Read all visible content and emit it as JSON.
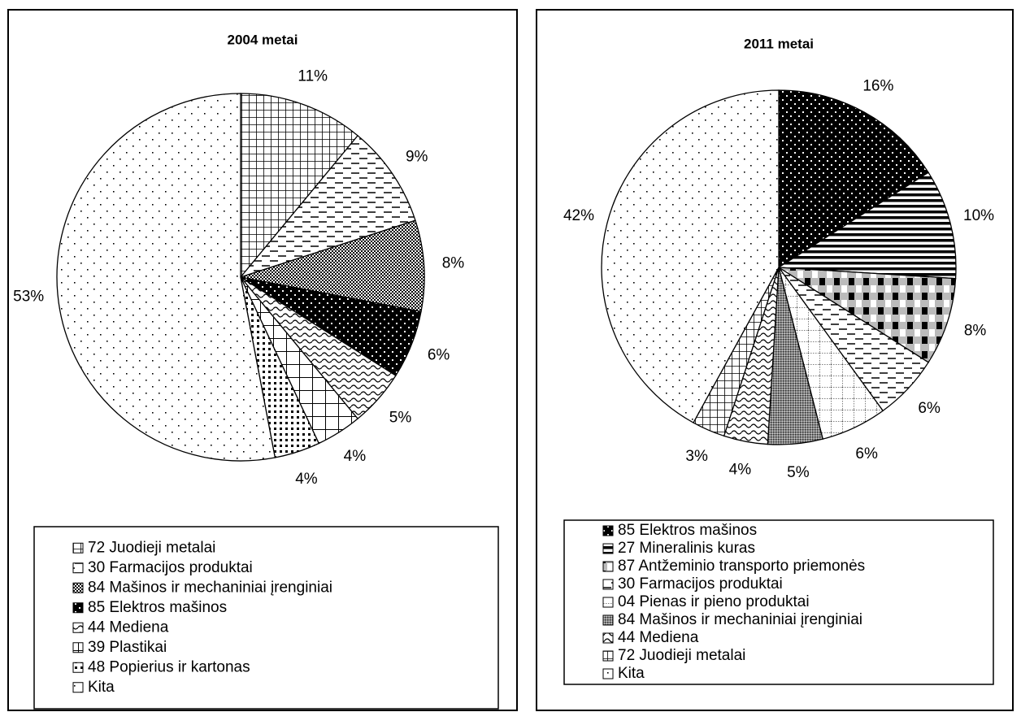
{
  "chart_data": [
    {
      "type": "pie",
      "title": "2004 metai",
      "categories": [
        "72 Juodieji metalai",
        "30 Farmacijos produktai",
        "84 Mašinos ir mechaniniai įrenginiai",
        "85 Elektros mašinos",
        "44 Mediena",
        "39 Plastikai",
        "48 Popierius ir kartonas",
        "Kita"
      ],
      "values": [
        11,
        9,
        8,
        6,
        5,
        4,
        4,
        53
      ],
      "value_labels": [
        "11%",
        "9%",
        "8%",
        "6%",
        "5%",
        "4%",
        "4%",
        "53%"
      ],
      "patterns": [
        "grid",
        "dash",
        "checker",
        "dotsblack",
        "wave",
        "crossbig",
        "blocks",
        "sparse"
      ]
    },
    {
      "type": "pie",
      "title": "2011 metai",
      "categories": [
        "85 Elektros mašinos",
        "27 Mineralinis kuras",
        "87 Antžeminio transporto priemonės",
        "30 Farmacijos produktai",
        "04 Pienas ir pieno produktai",
        "84 Mašinos ir mechaniniai įrenginiai",
        "44 Mediena",
        "72 Juodieji metalai",
        "Kita"
      ],
      "values": [
        16,
        10,
        8,
        6,
        6,
        5,
        4,
        3,
        42
      ],
      "value_labels": [
        "16%",
        "10%",
        "8%",
        "6%",
        "6%",
        "5%",
        "4%",
        "3%",
        "42%"
      ],
      "patterns": [
        "dotsblack",
        "stripes",
        "bigchecker",
        "dash",
        "dotgrid",
        "dense",
        "wave",
        "grid",
        "sparse"
      ]
    }
  ]
}
